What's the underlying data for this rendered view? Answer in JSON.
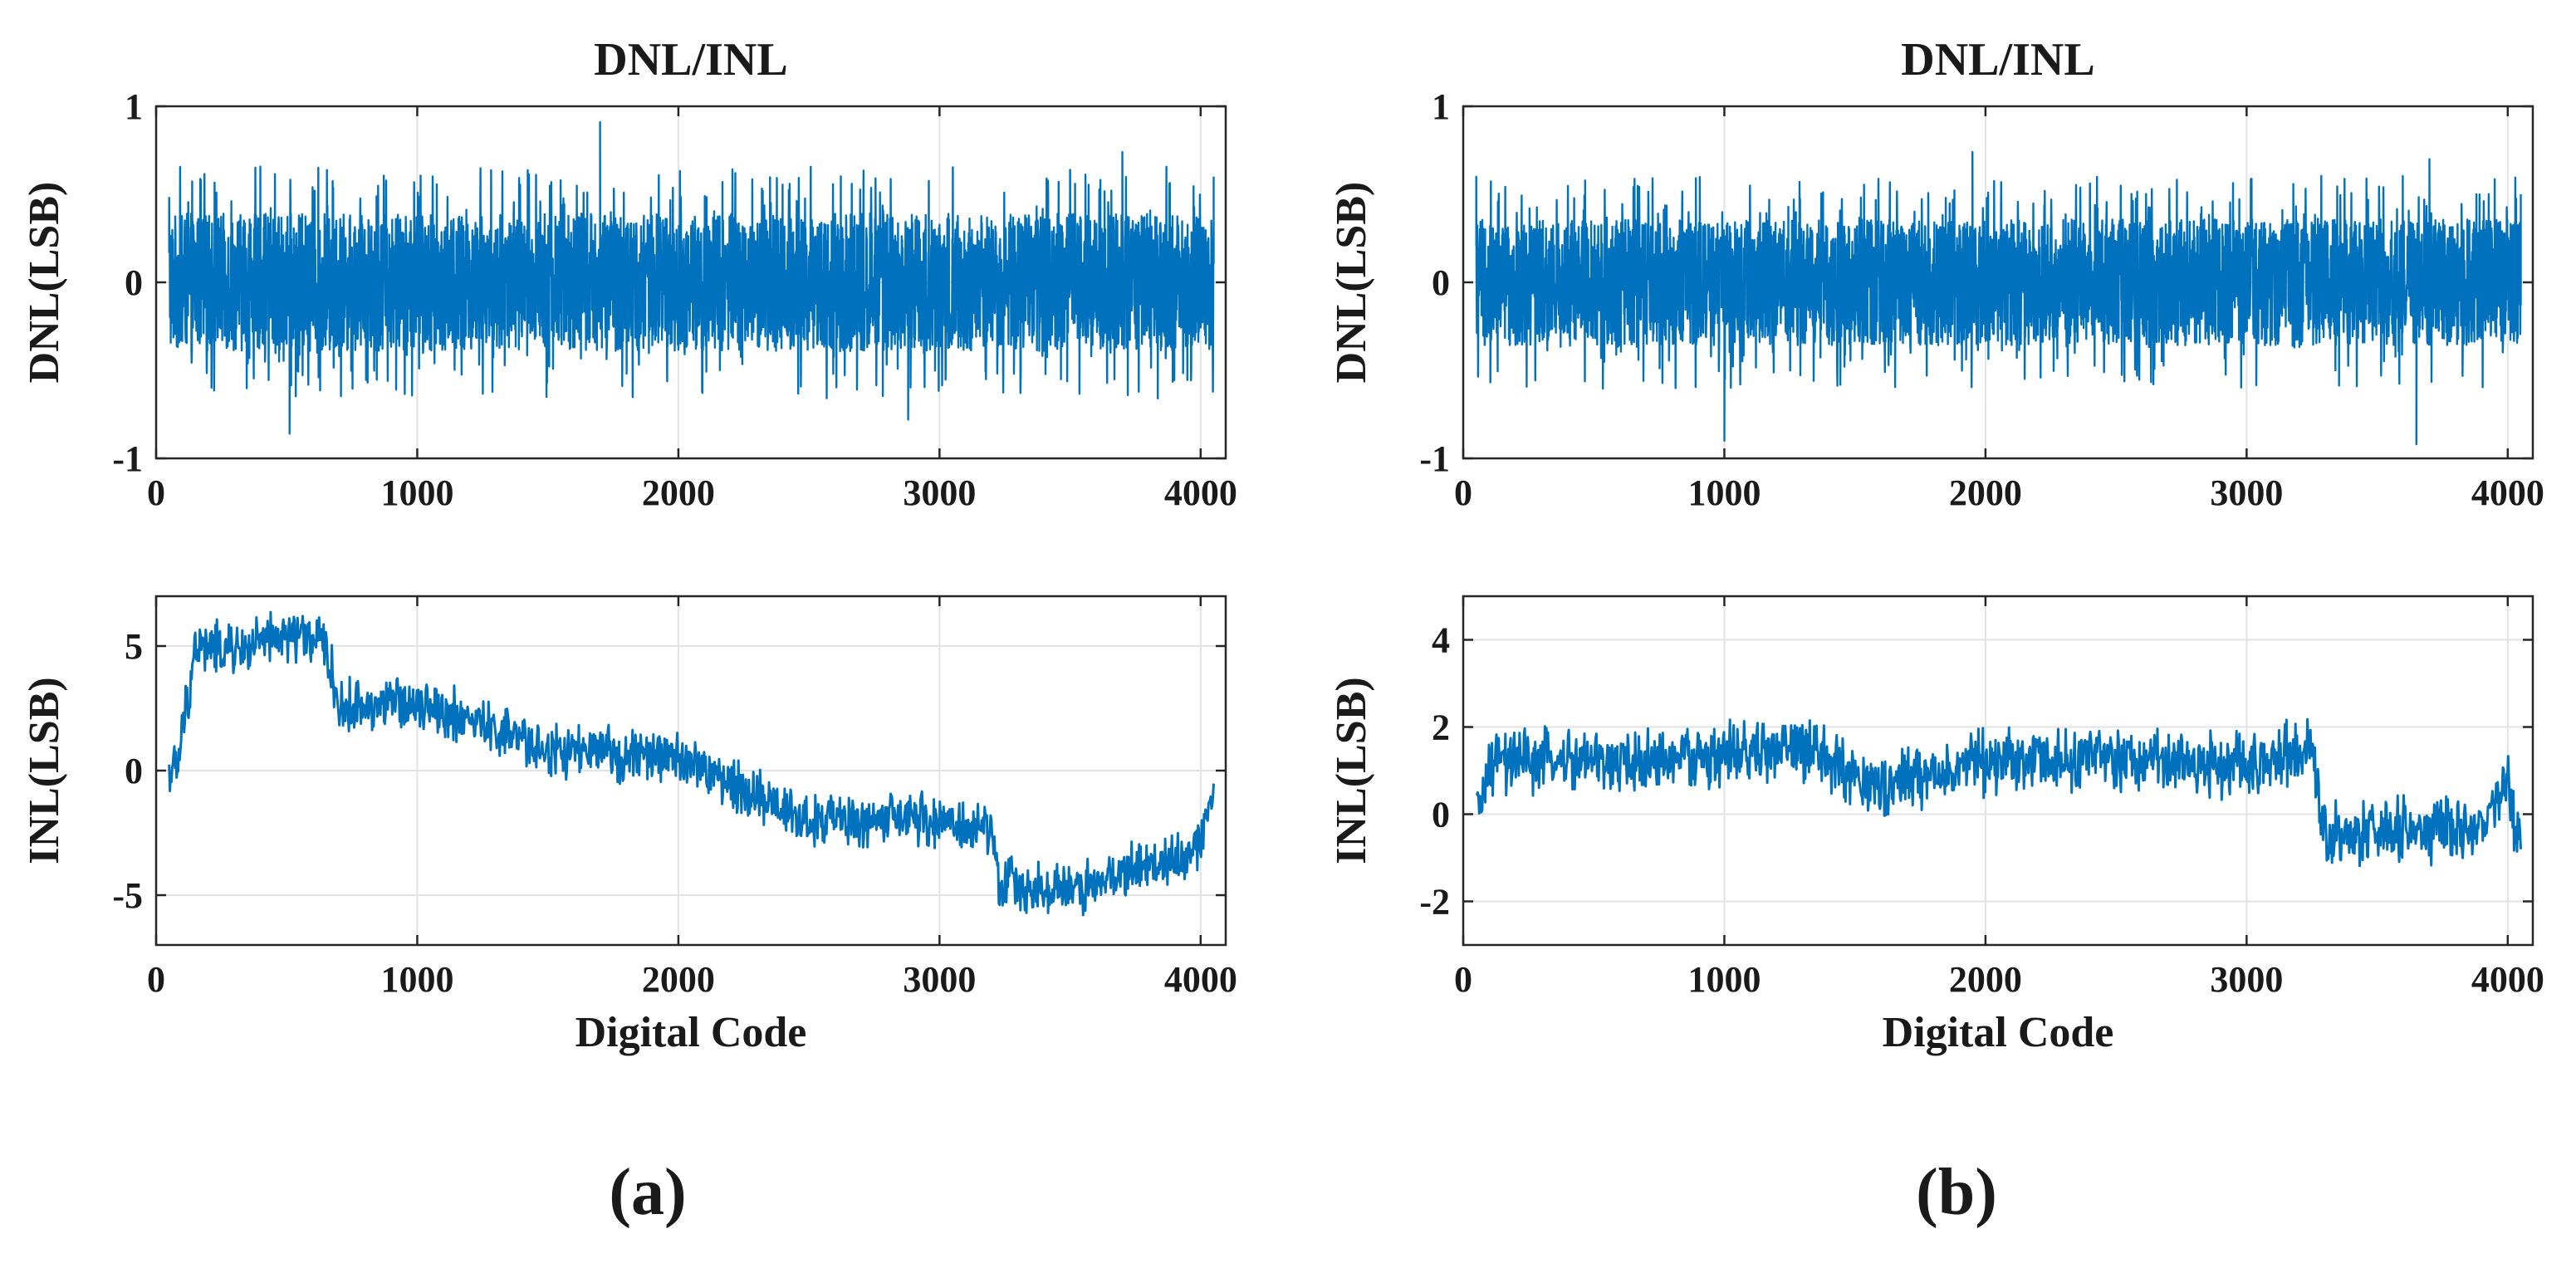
{
  "chart_data": [
    {
      "type": "line",
      "panel": "(a)",
      "title": "DNL/INL",
      "xlabel": "",
      "ylabel": "DNL(LSB)",
      "xlim": [
        0,
        4096
      ],
      "ylim": [
        -1,
        1
      ],
      "xticks": [
        "0",
        "1000",
        "2000",
        "3000",
        "4000"
      ],
      "yticks": [
        "-1",
        "0",
        "1"
      ],
      "grid": true,
      "line_color": "#0072bd",
      "series": [
        {
          "x_range": [
            50,
            4050
          ],
          "noise_amplitude": 0.6,
          "values": [
            [
              50,
              0.48
            ],
            [
              511,
              -0.86
            ],
            [
              1700,
              0.91
            ],
            [
              2880,
              -0.78
            ],
            [
              3700,
              0.74
            ],
            [
              4050,
              0.6
            ]
          ]
        }
      ]
    },
    {
      "type": "line",
      "panel": "(a)",
      "title": "",
      "xlabel": "Digital Code",
      "ylabel": "INL(LSB)",
      "xlim": [
        0,
        4096
      ],
      "ylim": [
        -7,
        7
      ],
      "xticks": [
        "0",
        "1000",
        "2000",
        "3000",
        "4000"
      ],
      "yticks": [
        "-5",
        "0",
        "5"
      ],
      "grid": true,
      "line_color": "#0072bd",
      "series": [
        {
          "x_range": [
            50,
            4050
          ],
          "noise_amplitude": 1.6,
          "values": [
            [
              50,
              0
            ],
            [
              80,
              0
            ],
            [
              150,
              5
            ],
            [
              300,
              4.8
            ],
            [
              550,
              5.5
            ],
            [
              650,
              5
            ],
            [
              700,
              2.5
            ],
            [
              1000,
              2.8
            ],
            [
              1500,
              0.8
            ],
            [
              2000,
              0.5
            ],
            [
              2100,
              0
            ],
            [
              2500,
              -2
            ],
            [
              3000,
              -2
            ],
            [
              3200,
              -2.5
            ],
            [
              3230,
              -4.5
            ],
            [
              3500,
              -4.8
            ],
            [
              3900,
              -3.5
            ],
            [
              4000,
              -3
            ],
            [
              4050,
              -0.5
            ]
          ]
        }
      ]
    },
    {
      "type": "line",
      "panel": "(b)",
      "title": "DNL/INL",
      "xlabel": "",
      "ylabel": "DNL(LSB)",
      "xlim": [
        0,
        4096
      ],
      "ylim": [
        -1,
        1
      ],
      "xticks": [
        "0",
        "1000",
        "2000",
        "3000",
        "4000"
      ],
      "yticks": [
        "-1",
        "0",
        "1"
      ],
      "grid": true,
      "line_color": "#0072bd",
      "series": [
        {
          "x_range": [
            50,
            4050
          ],
          "noise_amplitude": 0.55,
          "values": [
            [
              50,
              0.6
            ],
            [
              1000,
              -0.9
            ],
            [
              1950,
              0.74
            ],
            [
              3650,
              -0.92
            ],
            [
              3700,
              0.7
            ],
            [
              4050,
              0.5
            ]
          ]
        }
      ]
    },
    {
      "type": "line",
      "panel": "(b)",
      "title": "",
      "xlabel": "Digital Code",
      "ylabel": "INL(LSB)",
      "xlim": [
        0,
        4096
      ],
      "ylim": [
        -3,
        5
      ],
      "xticks": [
        "0",
        "1000",
        "2000",
        "3000",
        "4000"
      ],
      "yticks": [
        "-2",
        "0",
        "2",
        "4"
      ],
      "grid": true,
      "line_color": "#0072bd",
      "series": [
        {
          "x_range": [
            50,
            4050
          ],
          "noise_amplitude": 1.1,
          "values": [
            [
              50,
              0
            ],
            [
              120,
              1.2
            ],
            [
              700,
              1.2
            ],
            [
              1300,
              1.5
            ],
            [
              1600,
              0.6
            ],
            [
              2000,
              1.2
            ],
            [
              2400,
              1.3
            ],
            [
              3000,
              1.1
            ],
            [
              3250,
              1.5
            ],
            [
              3300,
              -0.5
            ],
            [
              3900,
              -0.3
            ],
            [
              4000,
              0.6
            ],
            [
              4050,
              -0.6
            ]
          ]
        }
      ]
    }
  ],
  "panel_labels": [
    "(a)",
    "(b)"
  ]
}
